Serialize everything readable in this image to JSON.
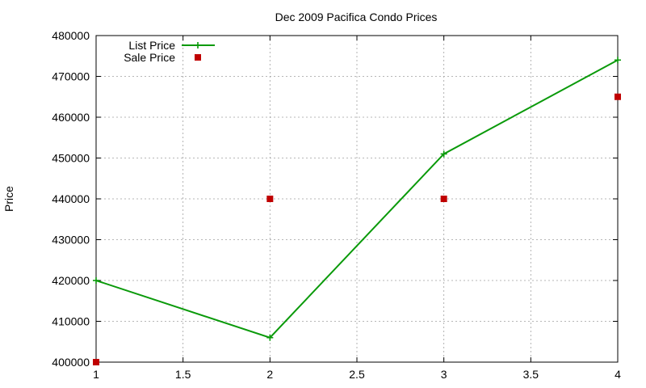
{
  "chart_data": {
    "type": "line",
    "title": "Dec 2009 Pacifica Condo Prices",
    "xlabel": "",
    "ylabel": "Price",
    "xlim": [
      1,
      4
    ],
    "ylim": [
      400000,
      480000
    ],
    "x_ticks": [
      "1",
      "1.5",
      "2",
      "2.5",
      "3",
      "3.5",
      "4"
    ],
    "y_ticks": [
      "400000",
      "410000",
      "420000",
      "430000",
      "440000",
      "450000",
      "460000",
      "470000",
      "480000"
    ],
    "grid": true,
    "legend_position": "top-left",
    "series": [
      {
        "name": "List Price",
        "style": "line+cross",
        "color": "#0a9a0a",
        "points": [
          {
            "x": 1,
            "y": 420000
          },
          {
            "x": 2,
            "y": 406000
          },
          {
            "x": 3,
            "y": 451000
          },
          {
            "x": 4,
            "y": 474000
          }
        ]
      },
      {
        "name": "Sale Price",
        "style": "square-markers",
        "color": "#c00000",
        "points": [
          {
            "x": 1,
            "y": 400000
          },
          {
            "x": 2,
            "y": 440000
          },
          {
            "x": 3,
            "y": 440000
          },
          {
            "x": 4,
            "y": 465000
          }
        ]
      }
    ]
  }
}
